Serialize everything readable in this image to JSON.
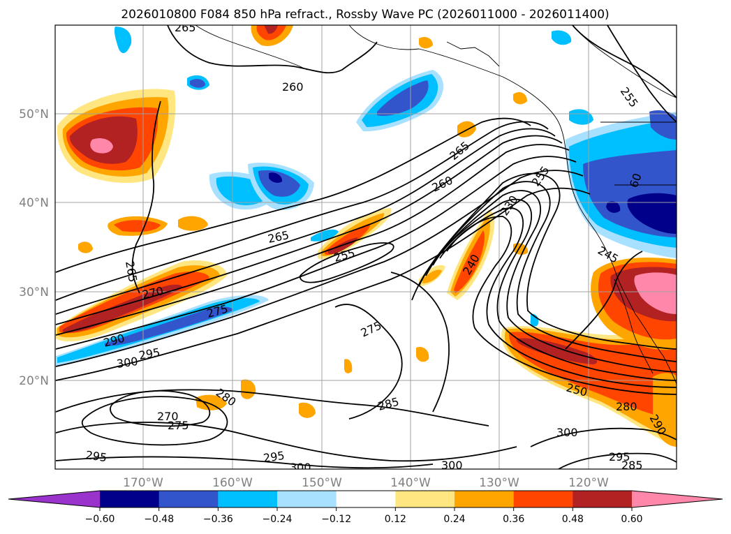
{
  "title": "2026010800 F084 850 hPa refract., Rossby Wave PC (2026011000 - 2026011400)",
  "lat_labels": [
    "20°N",
    "30°N",
    "40°N",
    "50°N"
  ],
  "lon_labels": [
    "170°W",
    "160°W",
    "150°W",
    "140°W",
    "130°W",
    "120°W"
  ],
  "colorbar": {
    "ticks": [
      "−0.60",
      "−0.48",
      "−0.36",
      "−0.24",
      "−0.12",
      "0.12",
      "0.24",
      "0.36",
      "0.48",
      "0.60"
    ],
    "colors": [
      "#9933cc",
      "#00008b",
      "#3355cc",
      "#00bfff",
      "#a8e0ff",
      "#ffffff",
      "#ffe680",
      "#ffa500",
      "#ff4500",
      "#b22222",
      "#ff88aa"
    ]
  },
  "contour_labels": [
    "265",
    "260",
    "265",
    "260",
    "255",
    "265",
    "270",
    "265",
    "275",
    "290",
    "295",
    "300",
    "255",
    "240",
    "250",
    "275",
    "280",
    "270",
    "275",
    "280",
    "285",
    "295",
    "300",
    "300",
    "295",
    "295",
    "285",
    "280",
    "290",
    "300",
    "245",
    "60",
    "260",
    "230",
    "255",
    "265"
  ]
}
